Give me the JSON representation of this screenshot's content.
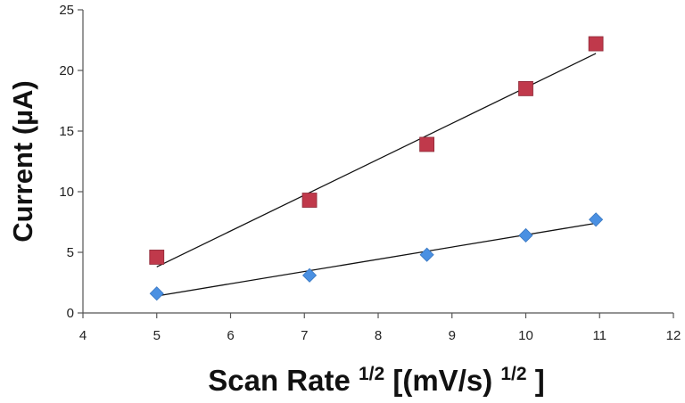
{
  "chart_data": {
    "type": "scatter",
    "title": "",
    "xlabel_main": "Scan Rate",
    "xlabel_sup1": "1/2",
    "xlabel_unit": "[(mV/s)",
    "xlabel_sup2": "1/2",
    "xlabel_close": "]",
    "ylabel": "Current (µA)",
    "xlim": [
      4,
      12
    ],
    "ylim": [
      0,
      25
    ],
    "xticks": [
      "4",
      "5",
      "6",
      "7",
      "8",
      "9",
      "10",
      "11",
      "12"
    ],
    "yticks": [
      "0",
      "5",
      "10",
      "15",
      "20",
      "25"
    ],
    "grid": false,
    "legend": "none",
    "series": [
      {
        "marker": "square",
        "color": "#c0394b",
        "x": [
          5.0,
          7.07,
          8.66,
          10.0,
          10.95
        ],
        "y": [
          4.6,
          9.3,
          13.9,
          18.5,
          22.2
        ],
        "trendline": [
          [
            5.0,
            3.8
          ],
          [
            10.95,
            21.4
          ]
        ]
      },
      {
        "marker": "diamond",
        "color": "#4a90e2",
        "x": [
          5.0,
          7.07,
          8.66,
          10.0,
          10.95
        ],
        "y": [
          1.6,
          3.1,
          4.8,
          6.4,
          7.7
        ],
        "trendline": [
          [
            5.0,
            1.4
          ],
          [
            10.95,
            7.4
          ]
        ]
      }
    ]
  }
}
